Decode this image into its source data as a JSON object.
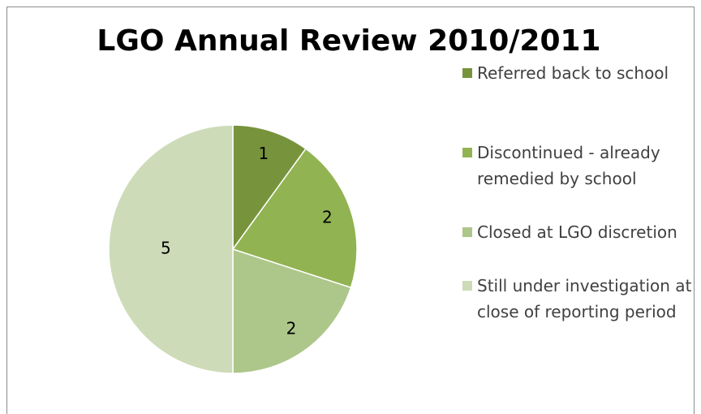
{
  "chart_data": {
    "type": "pie",
    "title": "LGO Annual Review 2010/2011",
    "categories": [
      "Referred back to school",
      "Discontinued - already remedied by school",
      "Closed at LGO discretion",
      "Still under investigation at close of reporting period"
    ],
    "values": [
      1,
      2,
      2,
      5
    ],
    "colors": [
      "#77933c",
      "#92b352",
      "#adc68a",
      "#cddbb8"
    ],
    "legend": "right"
  }
}
